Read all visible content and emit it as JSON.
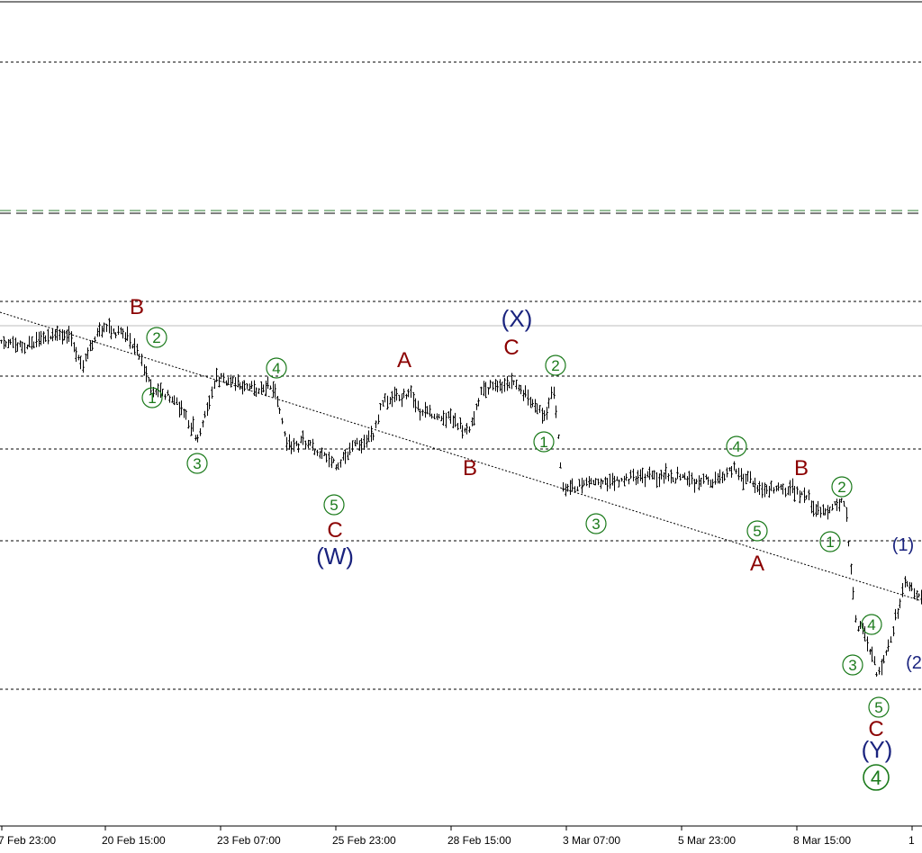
{
  "chart_data": {
    "type": "line",
    "series": "OHLC price bars with Elliott wave labels",
    "x_tick_labels": [
      "7 Feb 23:00",
      "20 Feb 15:00",
      "23 Feb 07:00",
      "25 Feb 23:00",
      "28 Feb 15:00",
      "3 Mar 07:00",
      "5 Mar 23:00",
      "8 Mar 15:00",
      "1"
    ],
    "grid": false,
    "colors": {
      "price_bars": "#000000",
      "level_lines": "#000000",
      "green_dashed_level": "#2e7d32",
      "grey_level": "#bdbdbd",
      "minor_wave": "#1b7a1b",
      "intermediate_wave": "#8b0000",
      "primary_wave": "#1a237e"
    },
    "wave_labels": [
      {
        "text": "B",
        "degree": "intermediate"
      },
      {
        "text": "2",
        "degree": "minor"
      },
      {
        "text": "1",
        "degree": "minor"
      },
      {
        "text": "3",
        "degree": "minor"
      },
      {
        "text": "4",
        "degree": "minor"
      },
      {
        "text": "5",
        "degree": "minor"
      },
      {
        "text": "C",
        "degree": "intermediate"
      },
      {
        "text": "(W)",
        "degree": "primary"
      },
      {
        "text": "A",
        "degree": "intermediate"
      },
      {
        "text": "B",
        "degree": "intermediate"
      },
      {
        "text": "(X)",
        "degree": "primary"
      },
      {
        "text": "C",
        "degree": "intermediate"
      },
      {
        "text": "2",
        "degree": "minor"
      },
      {
        "text": "1",
        "degree": "minor"
      },
      {
        "text": "3",
        "degree": "minor"
      },
      {
        "text": "4",
        "degree": "minor"
      },
      {
        "text": "5",
        "degree": "minor"
      },
      {
        "text": "A",
        "degree": "intermediate"
      },
      {
        "text": "B",
        "degree": "intermediate"
      },
      {
        "text": "2",
        "degree": "minor"
      },
      {
        "text": "1",
        "degree": "minor"
      },
      {
        "text": "(1)",
        "degree": "primary"
      },
      {
        "text": "4",
        "degree": "minor"
      },
      {
        "text": "3",
        "degree": "minor"
      },
      {
        "text": "(2",
        "degree": "primary"
      },
      {
        "text": "5",
        "degree": "minor"
      },
      {
        "text": "C",
        "degree": "intermediate"
      },
      {
        "text": "(Y)",
        "degree": "primary"
      },
      {
        "text": "4",
        "degree": "cycle"
      }
    ]
  }
}
